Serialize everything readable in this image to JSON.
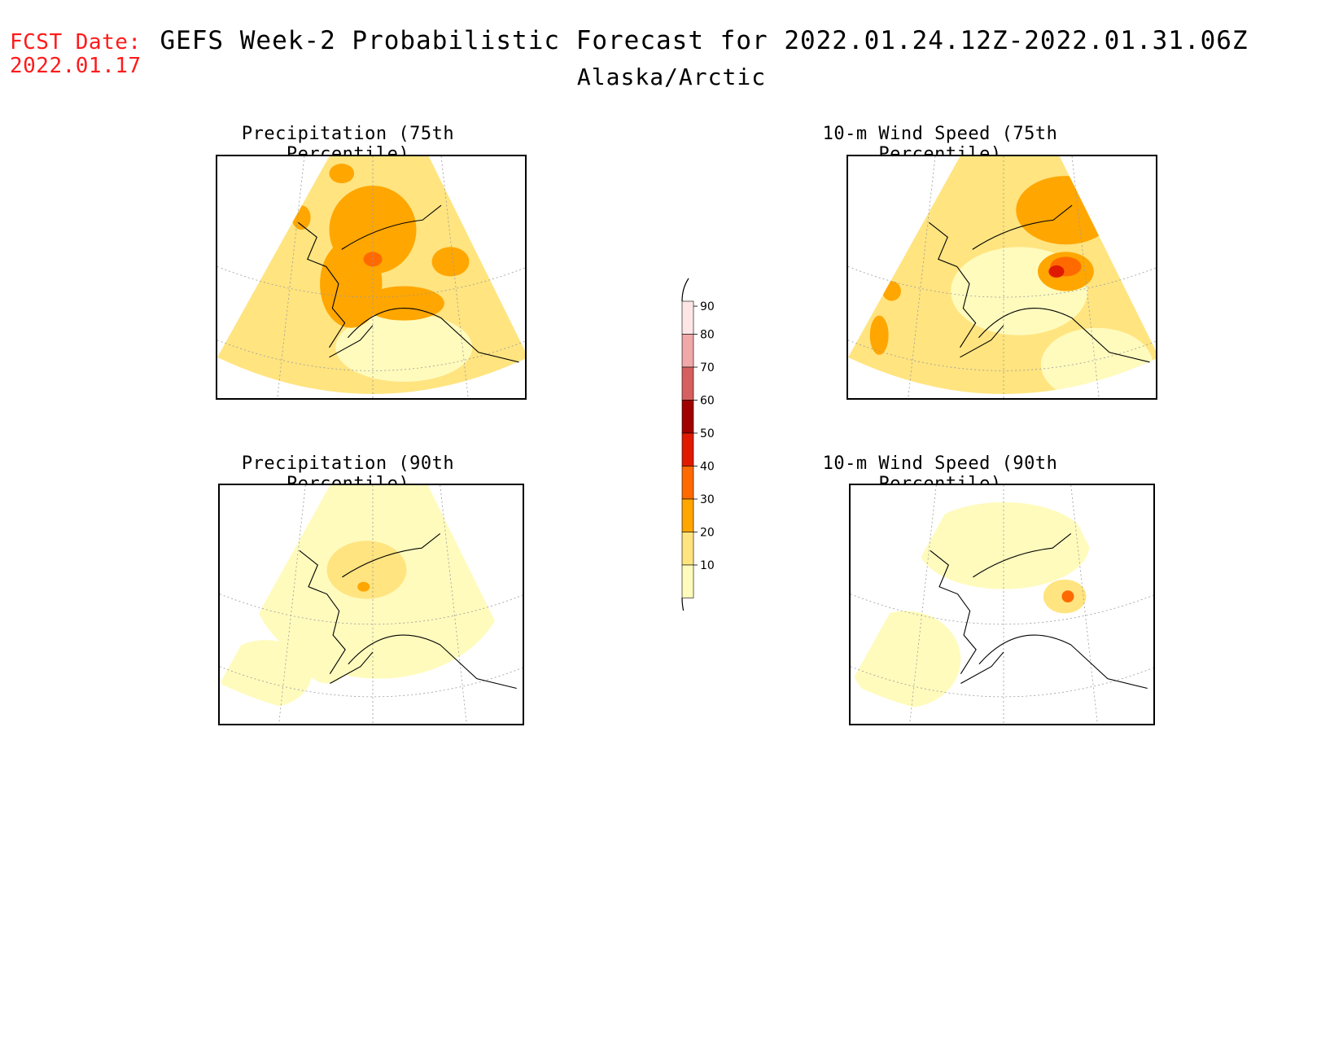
{
  "header": {
    "fcst_label": "FCST Date:",
    "fcst_date": "2022.01.17",
    "title": "GEFS Week-2 Probabilistic Forecast for 2022.01.24.12Z-2022.01.31.06Z",
    "region": "Alaska/Arctic"
  },
  "panels": [
    {
      "id": "precip75",
      "title": "Precipitation (75th Percentile)",
      "variable": "precipitation",
      "percentile": 75
    },
    {
      "id": "wind75",
      "title": "10-m Wind Speed (75th Percentile)",
      "variable": "wind",
      "percentile": 75
    },
    {
      "id": "precip90",
      "title": "Precipitation (90th Percentile)",
      "variable": "precipitation",
      "percentile": 90
    },
    {
      "id": "wind90",
      "title": "10-m Wind Speed (90th Percentile)",
      "variable": "wind",
      "percentile": 90
    }
  ],
  "colorbar": {
    "levels": [
      "10",
      "20",
      "30",
      "40",
      "50",
      "60",
      "70",
      "80",
      "90"
    ],
    "colors": {
      "10": "#fffbbd",
      "20": "#ffe480",
      "30": "#ffa600",
      "40": "#ff6a00",
      "50": "#e01a00",
      "60": "#a00000",
      "70": "#d66060",
      "80": "#f0a8a8",
      "90": "#ffe6e6"
    }
  },
  "colors": {
    "fcst_text": "#ff1a1a",
    "land_border": "#000000",
    "graticule": "#999999"
  }
}
